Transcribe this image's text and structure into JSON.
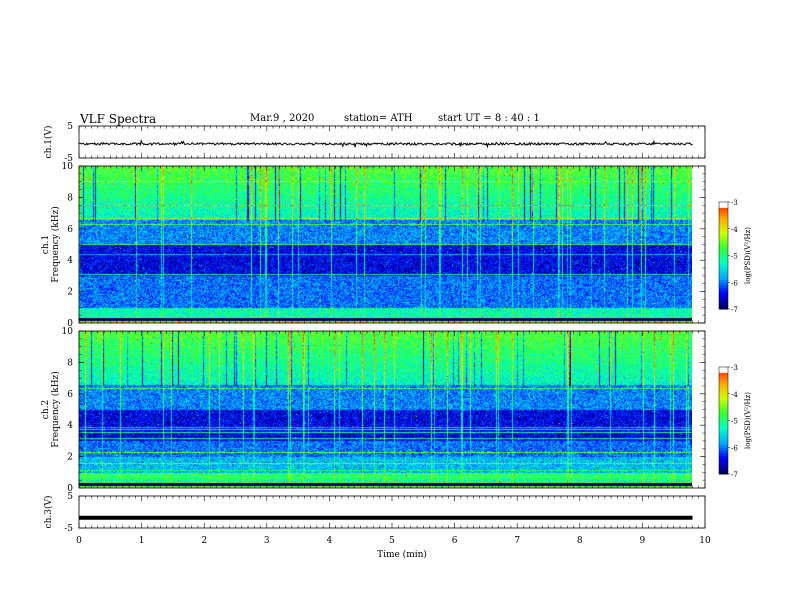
{
  "header": {
    "title": "VLF  Spectra",
    "date": "Mar.9  , 2020",
    "station": "station= ATH",
    "start_ut": "start  UT  =   8  : 40 : 1"
  },
  "colors": {
    "colormap": [
      "#000066",
      "#0000ff",
      "#00aaff",
      "#00ffcc",
      "#33ff33",
      "#ccff00",
      "#ffaa00",
      "#ff2200",
      "#ffffff"
    ],
    "trace": "#000000"
  },
  "chart_data": [
    {
      "type": "line",
      "ylabel": "ch.1(V)",
      "ylim": [
        -5,
        5
      ],
      "yticks": [
        "5",
        "-5"
      ],
      "xlim": [
        0,
        10
      ],
      "series": [
        {
          "values_description_none": "",
          "mean": -0.6,
          "noise": 0.35,
          "x_end": 9.8
        }
      ]
    },
    {
      "type": "heatmap",
      "ylabel_top": "ch.1",
      "ylabel": "Frequency  (kHz)",
      "ylim": [
        0,
        10
      ],
      "yticks": [
        "0",
        "2",
        "4",
        "6",
        "8",
        "10"
      ],
      "xlim": [
        0,
        10
      ],
      "x_end": 9.8,
      "colorbar": {
        "label": "log(PSD)(V²/Hz)",
        "range": [
          -7,
          -3
        ],
        "ticks": [
          "-3",
          "-4",
          "-5",
          "-6",
          "-7"
        ]
      }
    },
    {
      "type": "heatmap",
      "ylabel_top": "ch.2",
      "ylabel": "Frequency  (kHz)",
      "ylim": [
        0,
        10
      ],
      "yticks": [
        "0",
        "2",
        "4",
        "6",
        "8",
        "10"
      ],
      "xlim": [
        0,
        10
      ],
      "x_end": 9.8,
      "colorbar": {
        "label": "log(PSD)(V²/Hz)",
        "range": [
          -7,
          -3
        ],
        "ticks": [
          "-3",
          "-4",
          "-5",
          "-6",
          "-7"
        ]
      }
    },
    {
      "type": "line",
      "ylabel": "ch.3(V)",
      "ylim": [
        -5,
        5
      ],
      "yticks": [
        "5",
        "-5"
      ],
      "xlim": [
        0,
        10
      ],
      "series": [
        {
          "mean": -1.8,
          "noise": 0.0,
          "x_end": 9.8
        }
      ]
    }
  ],
  "xaxis": {
    "label": "Time  (min)",
    "ticks": [
      "0",
      "1",
      "2",
      "3",
      "4",
      "5",
      "6",
      "7",
      "8",
      "9",
      "10"
    ]
  }
}
